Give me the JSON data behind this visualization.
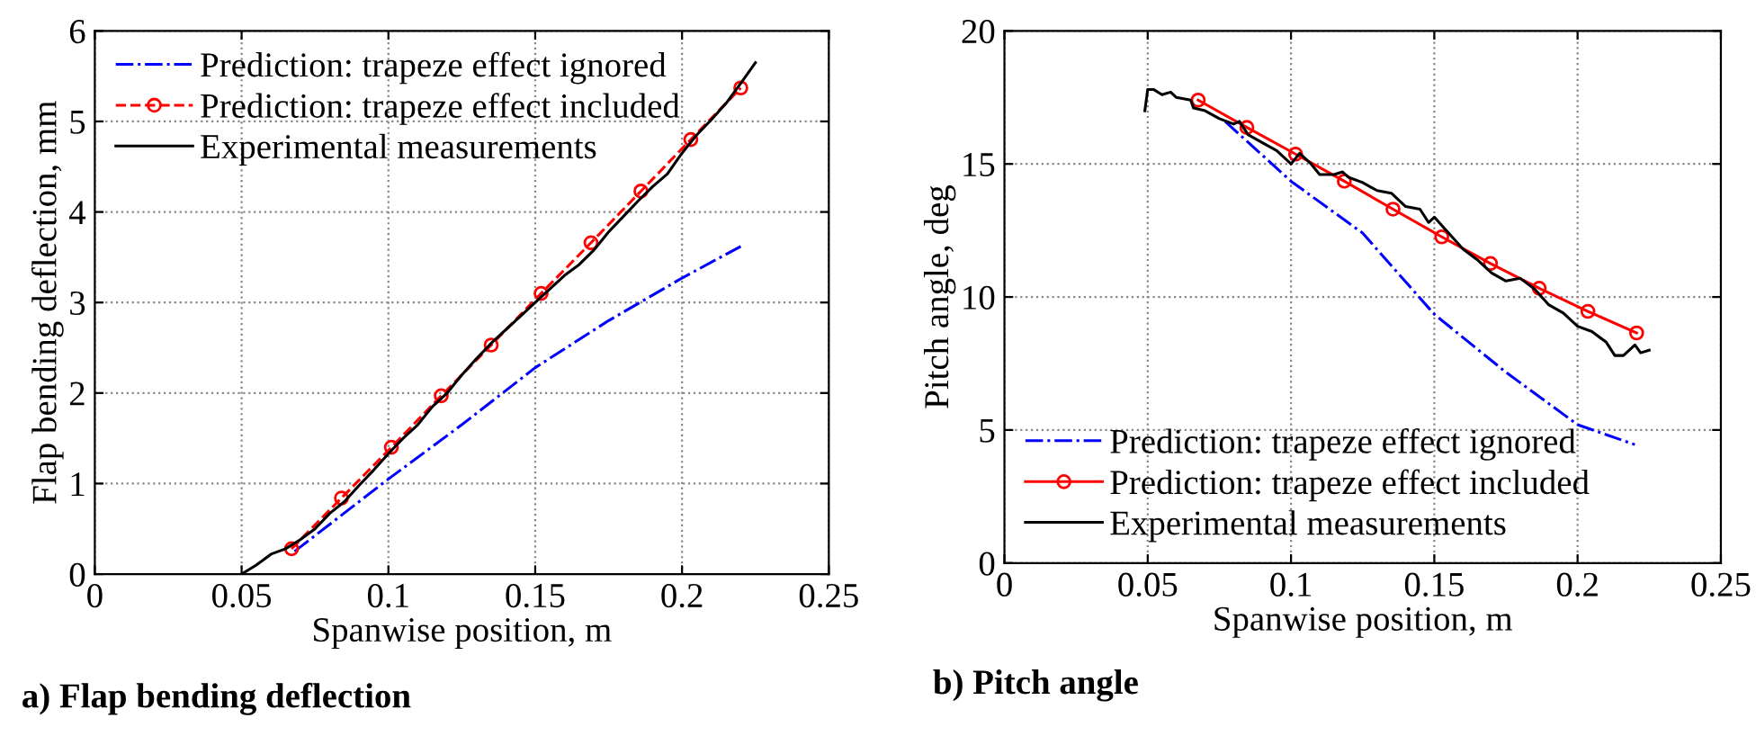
{
  "chart_data": [
    {
      "type": "line",
      "title": "a) Flap bending deflection",
      "xlabel": "Spanwise position, m",
      "ylabel": "Flap bending deflection, mm",
      "xlim": [
        0,
        0.25
      ],
      "xticks": [
        0,
        0.05,
        0.1,
        0.15,
        0.2,
        0.25
      ],
      "ylim": [
        0,
        6
      ],
      "yticks": [
        0,
        1,
        2,
        3,
        4,
        5,
        6
      ],
      "grid": true,
      "legend": "top left",
      "series": [
        {
          "name": "Prediction: trapeze effect ignored",
          "color": "#0000ff",
          "line_style": "dashdot",
          "marker": "none",
          "x": [
            0.068,
            0.07,
            0.1,
            0.125,
            0.15,
            0.175,
            0.2,
            0.22
          ],
          "values": [
            0.25,
            0.3,
            1.05,
            1.65,
            2.28,
            2.8,
            3.27,
            3.62
          ]
        },
        {
          "name": "Prediction: trapeze effect included",
          "color": "#ff0000",
          "line_style": "dashed",
          "marker": "circle",
          "x": [
            0.067,
            0.084,
            0.101,
            0.118,
            0.135,
            0.152,
            0.169,
            0.186,
            0.203,
            0.22
          ],
          "values": [
            0.28,
            0.84,
            1.4,
            1.97,
            2.53,
            3.1,
            3.66,
            4.23,
            4.8,
            5.37
          ]
        },
        {
          "name": "Experimental measurements",
          "color": "#000000",
          "line_style": "solid",
          "marker": "none",
          "x": [
            0.05,
            0.055,
            0.06,
            0.065,
            0.07,
            0.075,
            0.08,
            0.085,
            0.09,
            0.095,
            0.1,
            0.105,
            0.11,
            0.115,
            0.12,
            0.125,
            0.13,
            0.135,
            0.14,
            0.145,
            0.15,
            0.155,
            0.16,
            0.165,
            0.17,
            0.175,
            0.18,
            0.185,
            0.19,
            0.195,
            0.2,
            0.205,
            0.21,
            0.215,
            0.22,
            0.225
          ],
          "values": [
            0,
            0.1,
            0.22,
            0.28,
            0.38,
            0.5,
            0.67,
            0.8,
            0.98,
            1.15,
            1.33,
            1.5,
            1.65,
            1.85,
            2.0,
            2.2,
            2.38,
            2.55,
            2.7,
            2.85,
            3.0,
            3.15,
            3.3,
            3.42,
            3.58,
            3.78,
            3.95,
            4.12,
            4.28,
            4.42,
            4.65,
            4.85,
            5.02,
            5.2,
            5.42,
            5.65
          ]
        }
      ]
    },
    {
      "type": "line",
      "title": "b) Pitch angle",
      "xlabel": "Spanwise position, m",
      "ylabel": "Pitch angle, deg",
      "xlim": [
        0,
        0.25
      ],
      "xticks": [
        0,
        0.05,
        0.1,
        0.15,
        0.2,
        0.25
      ],
      "ylim": [
        0,
        20
      ],
      "yticks": [
        0,
        5,
        10,
        15,
        20
      ],
      "grid": true,
      "legend": "bottom left",
      "series": [
        {
          "name": "Prediction: trapeze effect ignored",
          "color": "#0000ff",
          "line_style": "dashdot",
          "marker": "none",
          "x": [
            0.077,
            0.1,
            0.125,
            0.15,
            0.175,
            0.2,
            0.22
          ],
          "values": [
            16.6,
            14.35,
            12.4,
            9.35,
            7.17,
            5.2,
            4.45
          ]
        },
        {
          "name": "Prediction: trapeze effect included",
          "color": "#ff0000",
          "line_style": "solid",
          "marker": "circle",
          "x": [
            0.0676,
            0.0846,
            0.1016,
            0.1186,
            0.1356,
            0.1526,
            0.1696,
            0.1866,
            0.2036,
            0.2206
          ],
          "values": [
            17.4,
            16.37,
            15.37,
            14.35,
            13.3,
            12.26,
            11.26,
            10.33,
            9.46,
            8.65
          ]
        },
        {
          "name": "Experimental measurements",
          "color": "#000000",
          "line_style": "solid",
          "marker": "none",
          "x": [
            0.049,
            0.05,
            0.052,
            0.055,
            0.058,
            0.06,
            0.065,
            0.066,
            0.07,
            0.075,
            0.08,
            0.082,
            0.085,
            0.09,
            0.095,
            0.1,
            0.103,
            0.107,
            0.11,
            0.115,
            0.118,
            0.12,
            0.125,
            0.13,
            0.135,
            0.14,
            0.145,
            0.148,
            0.15,
            0.155,
            0.16,
            0.165,
            0.17,
            0.175,
            0.18,
            0.185,
            0.19,
            0.195,
            0.2,
            0.205,
            0.21,
            0.213,
            0.216,
            0.22,
            0.222,
            0.225
          ],
          "values": [
            17.0,
            17.8,
            17.8,
            17.6,
            17.7,
            17.5,
            17.4,
            17.1,
            17.0,
            16.7,
            16.5,
            16.6,
            16.1,
            15.8,
            15.5,
            15.0,
            15.4,
            15.0,
            14.6,
            14.6,
            14.7,
            14.5,
            14.3,
            14.0,
            13.9,
            13.4,
            13.3,
            12.8,
            13.0,
            12.4,
            11.8,
            11.4,
            10.9,
            10.6,
            10.7,
            10.3,
            9.7,
            9.4,
            8.9,
            8.7,
            8.3,
            7.8,
            7.8,
            8.2,
            7.9,
            8.0
          ]
        }
      ]
    }
  ]
}
